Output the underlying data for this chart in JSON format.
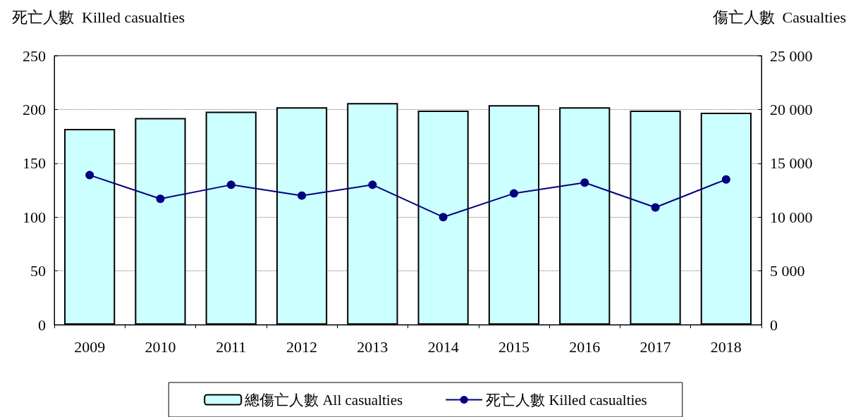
{
  "chart_data": {
    "type": "bar",
    "ylabel": "死亡人數  Killed casualties",
    "y2label": "傷亡人數  Casualties",
    "categories": [
      "2009",
      "2010",
      "2011",
      "2012",
      "2013",
      "2014",
      "2015",
      "2016",
      "2017",
      "2018"
    ],
    "series": [
      {
        "name": "總傷亡人數 All casualties",
        "axis": "y2",
        "color": "#ccffff",
        "values": [
          18200,
          19200,
          19800,
          20200,
          20600,
          19900,
          20400,
          20200,
          19900,
          19700
        ]
      },
      {
        "name": "死亡人數 Killed casualties",
        "type": "line",
        "axis": "y",
        "color": "#000080",
        "marker": "circle",
        "values": [
          139,
          117,
          130,
          120,
          130,
          100,
          122,
          132,
          109,
          135
        ]
      }
    ],
    "ylim": [
      0,
      250
    ],
    "yticks": [
      0,
      50,
      100,
      150,
      200,
      250
    ],
    "y2lim": [
      0,
      25000
    ],
    "y2ticks": [
      {
        "value": 0,
        "label": "0"
      },
      {
        "value": 5000,
        "label": "5 000"
      },
      {
        "value": 10000,
        "label": "10 000"
      },
      {
        "value": 15000,
        "label": "15 000"
      },
      {
        "value": 20000,
        "label": "20 000"
      },
      {
        "value": 25000,
        "label": "25 000"
      }
    ],
    "grid": "y",
    "legend": "bottom"
  }
}
